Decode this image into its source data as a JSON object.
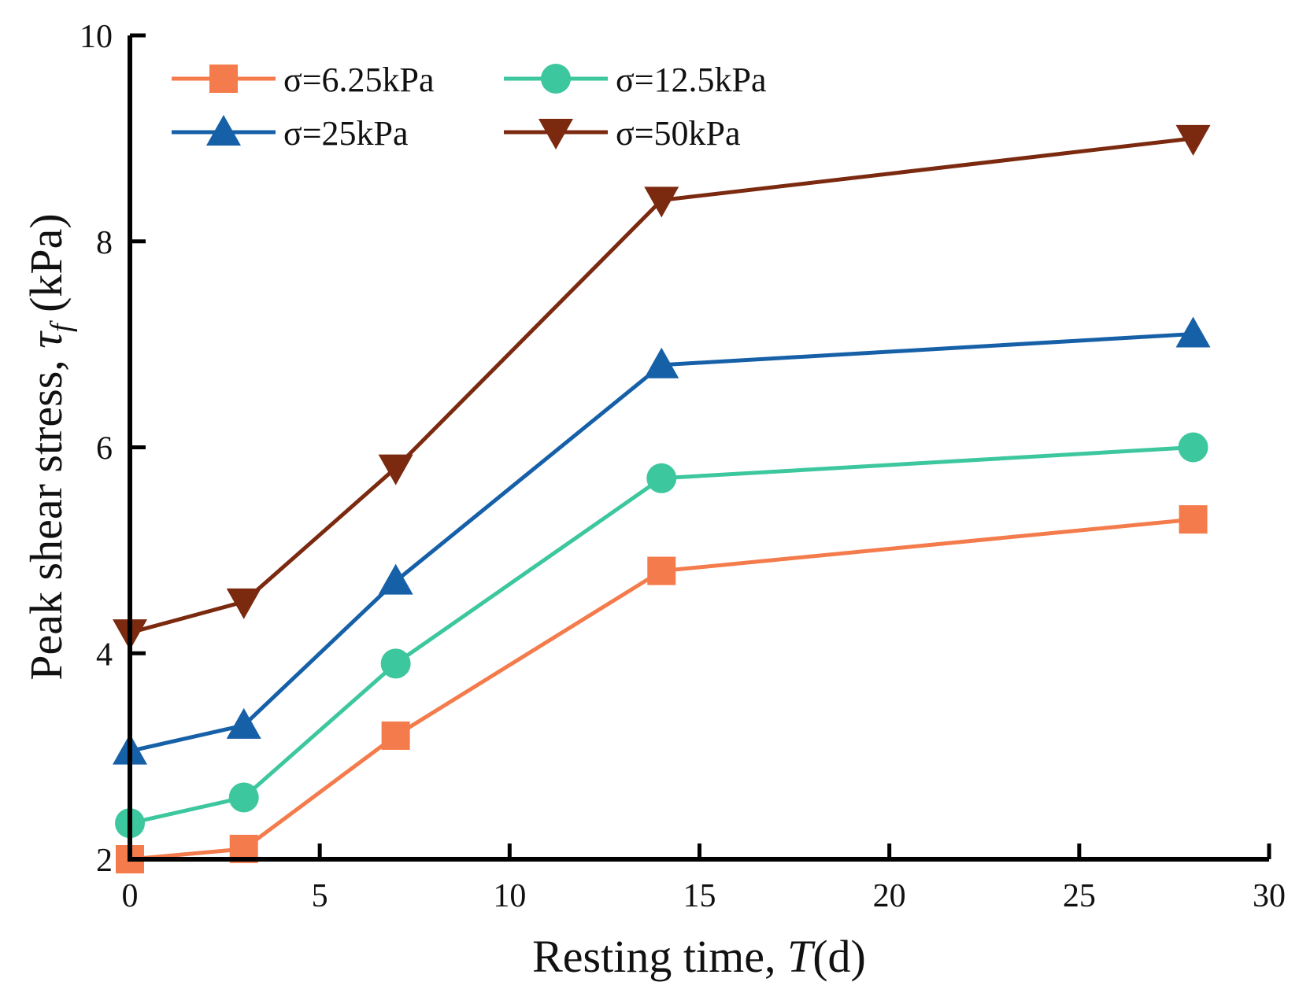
{
  "chart_data": {
    "type": "line",
    "title": "",
    "xlabel": {
      "prefix": "Resting time, ",
      "symbol": "T",
      "suffix": "(d)"
    },
    "ylabel": {
      "prefix": "Peak shear stress, ",
      "symbol": "τ",
      "subscript": "f",
      "suffix": " (kPa)"
    },
    "xlim": [
      0,
      30
    ],
    "ylim": [
      2,
      10
    ],
    "xticks": [
      0,
      5,
      10,
      15,
      20,
      25,
      30
    ],
    "yticks": [
      2,
      4,
      6,
      8,
      10
    ],
    "x": [
      0,
      3,
      7,
      14,
      28
    ],
    "grid": false,
    "legend_position": "top-left",
    "series": [
      {
        "name": "σ=6.25kPa",
        "marker": "square",
        "color": "#F47B4B",
        "values": [
          2.0,
          2.1,
          3.2,
          4.8,
          5.3
        ]
      },
      {
        "name": "σ=12.5kPa",
        "marker": "circle",
        "color": "#3DC79E",
        "values": [
          2.35,
          2.6,
          3.9,
          5.7,
          6.0
        ]
      },
      {
        "name": "σ=25kPa",
        "marker": "triangle-up",
        "color": "#1660A8",
        "values": [
          3.05,
          3.3,
          4.7,
          6.8,
          7.1
        ]
      },
      {
        "name": "σ=50kPa",
        "marker": "triangle-down",
        "color": "#7B2A10",
        "values": [
          4.2,
          4.5,
          5.8,
          8.4,
          9.0
        ]
      }
    ]
  }
}
